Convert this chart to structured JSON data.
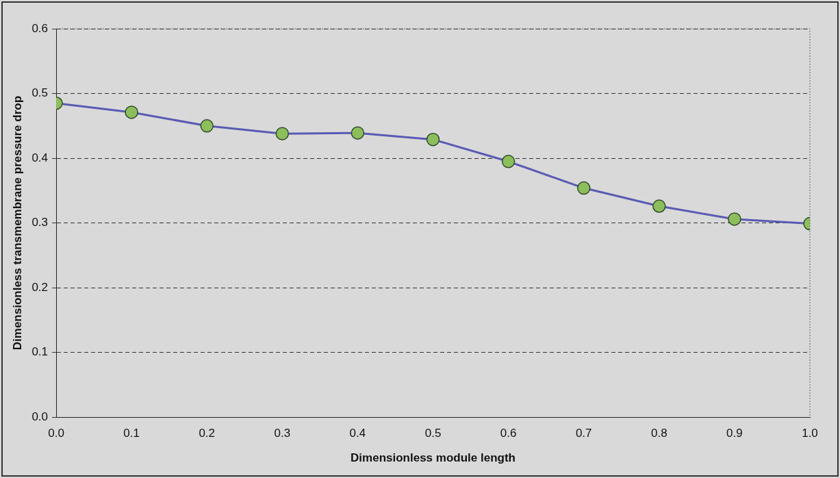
{
  "chart_data": {
    "type": "line",
    "xlabel": "Dimensionless module length",
    "ylabel": "Dimensionless transmembrane pressure drop",
    "x": [
      0,
      0.1,
      0.2,
      0.3,
      0.4,
      0.5,
      0.6,
      0.7,
      0.8,
      0.9,
      1.0
    ],
    "series": [
      {
        "color": "#5a5ab4",
        "values": [
          0.485,
          0.471,
          0.45,
          0.438,
          0.439,
          0.429,
          0.395,
          0.354,
          0.326,
          0.306,
          0.299
        ]
      }
    ],
    "xlim": [
      0,
      1
    ],
    "xticks": [
      {
        "value": 0,
        "label": "0.0"
      },
      0.1,
      0.2,
      0.3,
      0.4,
      0.5,
      0.6,
      0.7,
      0.8,
      0.9,
      {
        "value": 1,
        "label": "1.0"
      }
    ],
    "ylim": [
      0,
      0.6
    ],
    "yticks": [
      {
        "value": 0,
        "label": "0.0"
      },
      0.1,
      0.2,
      0.3,
      0.4,
      0.5,
      0.6
    ],
    "grid": "y",
    "legend": false,
    "marker": "circle",
    "line_style": "solid"
  }
}
